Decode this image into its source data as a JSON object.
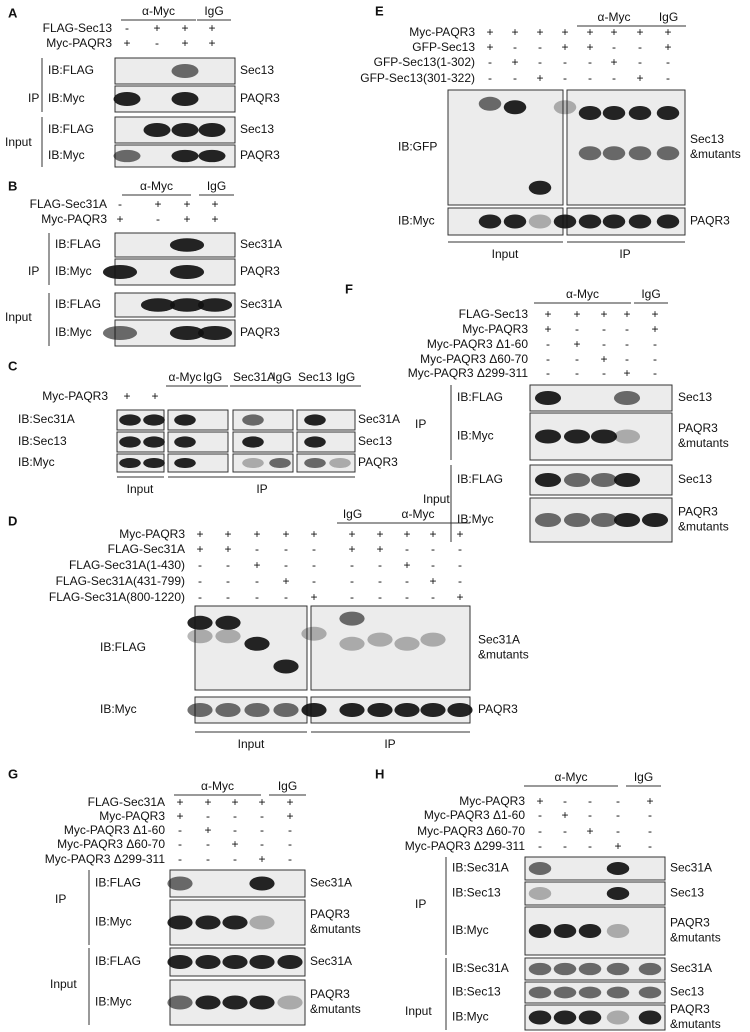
{
  "panels": [
    {
      "letter": "A",
      "groups": [
        "α-Myc",
        "IgG"
      ],
      "conditions": [
        {
          "label": "FLAG-Sec13",
          "signs": [
            "-",
            "+",
            "+",
            "+"
          ]
        },
        {
          "label": "Myc-PAQR3",
          "signs": [
            "+",
            "-",
            "+",
            "+"
          ]
        }
      ],
      "blots": [
        {
          "label": "IB:FLAG",
          "target": [
            "Sec13"
          ]
        },
        {
          "label": "IB:Myc",
          "target": [
            "PAQR3"
          ]
        },
        {
          "label": "IB:FLAG",
          "target": [
            "Sec13"
          ]
        },
        {
          "label": "IB:Myc",
          "target": [
            "PAQR3"
          ]
        }
      ],
      "sections": [
        "IP",
        "Input"
      ]
    },
    {
      "letter": "B",
      "groups": [
        "α-Myc",
        "IgG"
      ],
      "conditions": [
        {
          "label": "FLAG-Sec31A",
          "signs": [
            "-",
            "+",
            "+",
            "+"
          ]
        },
        {
          "label": "Myc-PAQR3",
          "signs": [
            "+",
            "-",
            "+",
            "+"
          ]
        }
      ],
      "blots": [
        {
          "label": "IB:FLAG",
          "target": [
            "Sec31A"
          ]
        },
        {
          "label": "IB:Myc",
          "target": [
            "PAQR3"
          ]
        },
        {
          "label": "IB:FLAG",
          "target": [
            "Sec31A"
          ]
        },
        {
          "label": "IB:Myc",
          "target": [
            "PAQR3"
          ]
        }
      ],
      "sections": [
        "IP",
        "Input"
      ]
    },
    {
      "letter": "C",
      "groups": [
        "α-Myc",
        "IgG",
        "Sec31A",
        "IgG",
        "Sec13",
        "IgG"
      ],
      "conditions": [
        {
          "label": "Myc-PAQR3",
          "signs": [
            "+",
            "+"
          ]
        }
      ],
      "blots": [
        {
          "label": "IB:Sec31A",
          "target": [
            "Sec31A"
          ]
        },
        {
          "label": "IB:Sec13",
          "target": [
            "Sec13"
          ]
        },
        {
          "label": "IB:Myc",
          "target": [
            "PAQR3"
          ]
        }
      ],
      "footer": [
        "Input",
        "IP"
      ]
    },
    {
      "letter": "D",
      "groups": [
        "IgG",
        "α-Myc"
      ],
      "conditions": [
        {
          "label": "Myc-PAQR3",
          "signs": [
            "+",
            "+",
            "+",
            "+",
            "+",
            "+",
            "+",
            "+",
            "+",
            "+"
          ]
        },
        {
          "label": "FLAG-Sec31A",
          "signs": [
            "+",
            "+",
            "-",
            "-",
            "-",
            "+",
            "+",
            "-",
            "-",
            "-"
          ]
        },
        {
          "label": "FLAG-Sec31A(1-430)",
          "signs": [
            "-",
            "-",
            "+",
            "-",
            "-",
            "-",
            "-",
            "+",
            "-",
            "-"
          ]
        },
        {
          "label": "FLAG-Sec31A(431-799)",
          "signs": [
            "-",
            "-",
            "-",
            "+",
            "-",
            "-",
            "-",
            "-",
            "+",
            "-"
          ]
        },
        {
          "label": "FLAG-Sec31A(800-1220)",
          "signs": [
            "-",
            "-",
            "-",
            "-",
            "+",
            "-",
            "-",
            "-",
            "-",
            "+"
          ]
        }
      ],
      "blots": [
        {
          "label": "IB:FLAG",
          "target": [
            "Sec31A",
            "&mutants"
          ]
        },
        {
          "label": "IB:Myc",
          "target": [
            "PAQR3"
          ]
        }
      ],
      "footer": [
        "Input",
        "IP"
      ]
    },
    {
      "letter": "E",
      "groups": [
        "α-Myc",
        "IgG"
      ],
      "conditions": [
        {
          "label": "Myc-PAQR3",
          "signs": [
            "+",
            "+",
            "+",
            "+",
            "+",
            "+",
            "+",
            "+"
          ]
        },
        {
          "label": "GFP-Sec13",
          "signs": [
            "+",
            "-",
            "-",
            "+",
            "+",
            "-",
            "-",
            "+"
          ]
        },
        {
          "label": "GFP-Sec13(1-302)",
          "signs": [
            "-",
            "+",
            "-",
            "-",
            "-",
            "+",
            "-",
            "-"
          ]
        },
        {
          "label": "GFP-Sec13(301-322)",
          "signs": [
            "-",
            "-",
            "+",
            "-",
            "-",
            "-",
            "+",
            "-"
          ]
        }
      ],
      "blots": [
        {
          "label": "IB:GFP",
          "target": [
            "Sec13",
            "&mutants"
          ]
        },
        {
          "label": "IB:Myc",
          "target": [
            "PAQR3"
          ]
        }
      ],
      "footer": [
        "Input",
        "IP"
      ]
    },
    {
      "letter": "F",
      "groups": [
        "α-Myc",
        "IgG"
      ],
      "conditions": [
        {
          "label": "FLAG-Sec13",
          "signs": [
            "+",
            "+",
            "+",
            "+",
            "+"
          ]
        },
        {
          "label": "Myc-PAQR3",
          "signs": [
            "+",
            "-",
            "-",
            "-",
            "+"
          ]
        },
        {
          "label": "Myc-PAQR3 Δ1-60",
          "signs": [
            "-",
            "+",
            "-",
            "-",
            "-"
          ]
        },
        {
          "label": "Myc-PAQR3 Δ60-70",
          "signs": [
            "-",
            "-",
            "+",
            "-",
            "-"
          ]
        },
        {
          "label": "Myc-PAQR3 Δ299-311",
          "signs": [
            "-",
            "-",
            "-",
            "+",
            "-"
          ]
        }
      ],
      "blots": [
        {
          "label": "IB:FLAG",
          "target": [
            "Sec13"
          ]
        },
        {
          "label": "IB:Myc",
          "target": [
            "PAQR3",
            "&mutants"
          ]
        },
        {
          "label": "IB:FLAG",
          "target": [
            "Sec13"
          ]
        },
        {
          "label": "IB:Myc",
          "target": [
            "PAQR3",
            "&mutants"
          ]
        }
      ],
      "sections": [
        "IP",
        "Input"
      ]
    },
    {
      "letter": "G",
      "groups": [
        "α-Myc",
        "IgG"
      ],
      "conditions": [
        {
          "label": "FLAG-Sec31A",
          "signs": [
            "+",
            "+",
            "+",
            "+",
            "+"
          ]
        },
        {
          "label": "Myc-PAQR3",
          "signs": [
            "+",
            "-",
            "-",
            "-",
            "+"
          ]
        },
        {
          "label": "Myc-PAQR3 Δ1-60",
          "signs": [
            "-",
            "+",
            "-",
            "-",
            "-"
          ]
        },
        {
          "label": "Myc-PAQR3 Δ60-70",
          "signs": [
            "-",
            "-",
            "+",
            "-",
            "-"
          ]
        },
        {
          "label": "Myc-PAQR3 Δ299-311",
          "signs": [
            "-",
            "-",
            "-",
            "+",
            "-"
          ]
        }
      ],
      "blots": [
        {
          "label": "IB:FLAG",
          "target": [
            "Sec31A"
          ]
        },
        {
          "label": "IB:Myc",
          "target": [
            "PAQR3",
            "&mutants"
          ]
        },
        {
          "label": "IB:FLAG",
          "target": [
            "Sec31A"
          ]
        },
        {
          "label": "IB:Myc",
          "target": [
            "PAQR3",
            "&mutants"
          ]
        }
      ],
      "sections": [
        "IP",
        "Input"
      ]
    },
    {
      "letter": "H",
      "groups": [
        "α-Myc",
        "IgG"
      ],
      "conditions": [
        {
          "label": "Myc-PAQR3",
          "signs": [
            "+",
            "-",
            "-",
            "-",
            "+"
          ]
        },
        {
          "label": "Myc-PAQR3 Δ1-60",
          "signs": [
            "-",
            "+",
            "-",
            "-",
            "-"
          ]
        },
        {
          "label": "Myc-PAQR3 Δ60-70",
          "signs": [
            "-",
            "-",
            "+",
            "-",
            "-"
          ]
        },
        {
          "label": "Myc-PAQR3 Δ299-311",
          "signs": [
            "-",
            "-",
            "-",
            "+",
            "-"
          ]
        }
      ],
      "blots": [
        {
          "label": "IB:Sec31A",
          "target": [
            "Sec31A"
          ]
        },
        {
          "label": "IB:Sec13",
          "target": [
            "Sec13"
          ]
        },
        {
          "label": "IB:Myc",
          "target": [
            "PAQR3",
            "&mutants"
          ]
        },
        {
          "label": "IB:Sec31A",
          "target": [
            "Sec31A"
          ]
        },
        {
          "label": "IB:Sec13",
          "target": [
            "Sec13"
          ]
        },
        {
          "label": "IB:Myc",
          "target": [
            "PAQR3",
            "&mutants"
          ]
        }
      ],
      "sections": [
        "IP",
        "Input"
      ]
    }
  ]
}
